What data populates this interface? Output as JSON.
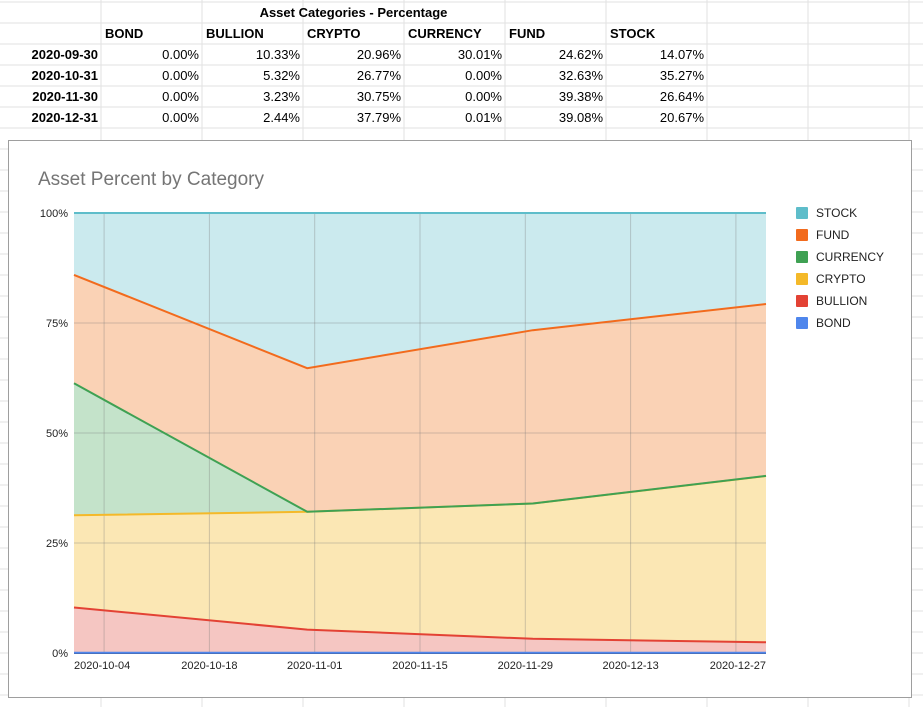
{
  "sheet": {
    "table_title": "Asset Categories - Percentage",
    "columns": [
      "BOND",
      "BULLION",
      "CRYPTO",
      "CURRENCY",
      "FUND",
      "STOCK"
    ],
    "rows": [
      {
        "date": "2020-09-30",
        "values": [
          "0.00%",
          "10.33%",
          "20.96%",
          "30.01%",
          "24.62%",
          "14.07%"
        ]
      },
      {
        "date": "2020-10-31",
        "values": [
          "0.00%",
          "5.32%",
          "26.77%",
          "0.00%",
          "32.63%",
          "35.27%"
        ]
      },
      {
        "date": "2020-11-30",
        "values": [
          "0.00%",
          "3.23%",
          "30.75%",
          "0.00%",
          "39.38%",
          "26.64%"
        ]
      },
      {
        "date": "2020-12-31",
        "values": [
          "0.00%",
          "2.44%",
          "37.79%",
          "0.01%",
          "39.08%",
          "20.67%"
        ]
      }
    ]
  },
  "chart_data": {
    "type": "area",
    "stacked": "percent",
    "title": "Asset Percent by Category",
    "xlabel": "",
    "ylabel": "",
    "x": [
      "2020-09-30",
      "2020-10-31",
      "2020-11-30",
      "2020-12-31"
    ],
    "x_ticks": [
      "2020-10-04",
      "2020-10-18",
      "2020-11-01",
      "2020-11-15",
      "2020-11-29",
      "2020-12-13",
      "2020-12-27"
    ],
    "y_ticks": [
      "0%",
      "25%",
      "50%",
      "75%",
      "100%"
    ],
    "ylim": [
      0,
      100
    ],
    "grid": true,
    "legend_position": "right",
    "series": [
      {
        "name": "BOND",
        "color": "#4f86ec",
        "fill": "#c9d9f8",
        "values": [
          0.0,
          0.0,
          0.0,
          0.0
        ]
      },
      {
        "name": "BULLION",
        "color": "#e34234",
        "fill": "#f5c6c2",
        "values": [
          10.33,
          5.32,
          3.23,
          2.44
        ]
      },
      {
        "name": "CRYPTO",
        "color": "#f4b929",
        "fill": "#fbe7b4",
        "values": [
          20.96,
          26.77,
          30.75,
          37.79
        ]
      },
      {
        "name": "CURRENCY",
        "color": "#3fa153",
        "fill": "#c4e3ca",
        "values": [
          30.01,
          0.0,
          0.0,
          0.01
        ]
      },
      {
        "name": "FUND",
        "color": "#f26b1d",
        "fill": "#fad2b5",
        "values": [
          24.62,
          32.63,
          39.38,
          39.08
        ]
      },
      {
        "name": "STOCK",
        "color": "#5ebdca",
        "fill": "#cbeaee",
        "values": [
          14.07,
          35.27,
          26.64,
          20.67
        ]
      }
    ],
    "legend_order": [
      "STOCK",
      "FUND",
      "CURRENCY",
      "CRYPTO",
      "BULLION",
      "BOND"
    ]
  }
}
